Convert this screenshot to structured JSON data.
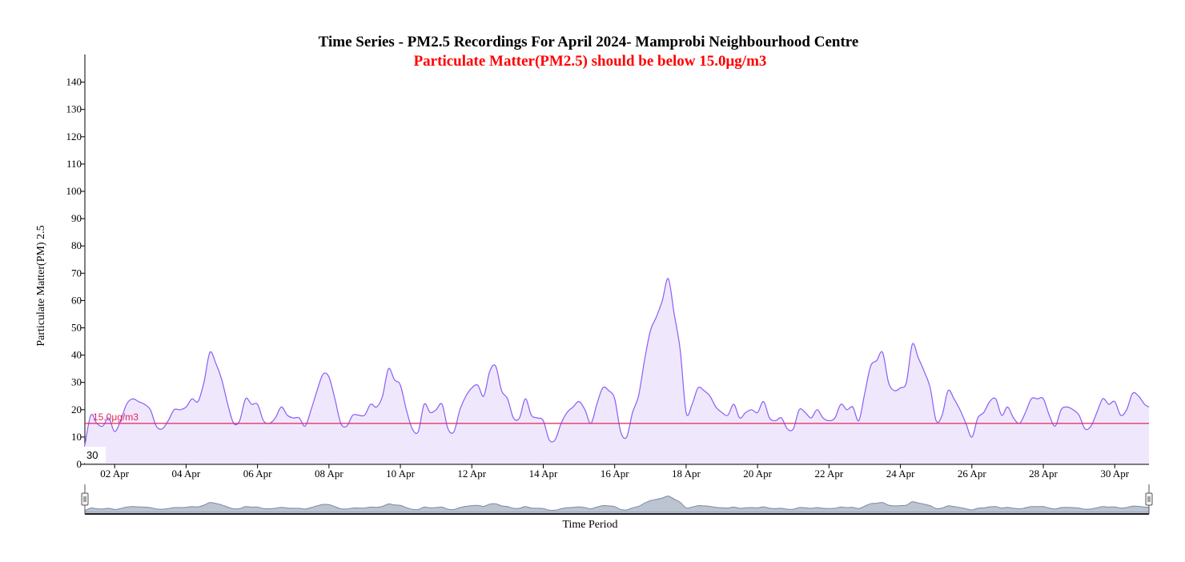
{
  "chart_data": {
    "type": "area",
    "title": "Time Series - PM2.5 Recordings For April 2024- Mamprobi Neighbourhood Centre",
    "subtitle": "Particulate Matter(PM2.5) should be below 15.0μg/m3",
    "xlabel": "Time Period",
    "ylabel": "Particulate Matter(PM) 2.5",
    "xlim": [
      "2024-04-01T04:00",
      "2024-04-30T23:00"
    ],
    "ylim": [
      0,
      145
    ],
    "y_ticks": [
      0,
      10,
      20,
      30,
      40,
      50,
      60,
      70,
      80,
      90,
      100,
      110,
      120,
      130,
      140
    ],
    "x_tick_labels": [
      "02 Apr",
      "04 Apr",
      "06 Apr",
      "08 Apr",
      "10 Apr",
      "12 Apr",
      "14 Apr",
      "16 Apr",
      "18 Apr",
      "20 Apr",
      "22 Apr",
      "24 Apr",
      "26 Apr",
      "28 Apr",
      "30 Apr"
    ],
    "grid": false,
    "threshold": {
      "value": 15.0,
      "label": "15.0μg/m3",
      "color": "#e0245e"
    },
    "hover_value": "30",
    "series": [
      {
        "color": "#8b5cf6",
        "fill": "#efe8fd",
        "points": [
          [
            "2024-04-01T04:00",
            7
          ],
          [
            "2024-04-01T08:00",
            18
          ],
          [
            "2024-04-01T12:00",
            15
          ],
          [
            "2024-04-01T16:00",
            14
          ],
          [
            "2024-04-01T20:00",
            17
          ],
          [
            "2024-04-02T00:00",
            12
          ],
          [
            "2024-04-02T04:00",
            16
          ],
          [
            "2024-04-02T08:00",
            22
          ],
          [
            "2024-04-02T12:00",
            24
          ],
          [
            "2024-04-02T16:00",
            23
          ],
          [
            "2024-04-02T20:00",
            22
          ],
          [
            "2024-04-03T00:00",
            20
          ],
          [
            "2024-04-03T04:00",
            14
          ],
          [
            "2024-04-03T08:00",
            13
          ],
          [
            "2024-04-03T12:00",
            16
          ],
          [
            "2024-04-03T16:00",
            20
          ],
          [
            "2024-04-03T20:00",
            20
          ],
          [
            "2024-04-04T00:00",
            21
          ],
          [
            "2024-04-04T04:00",
            24
          ],
          [
            "2024-04-04T08:00",
            23
          ],
          [
            "2024-04-04T12:00",
            30
          ],
          [
            "2024-04-04T16:00",
            41
          ],
          [
            "2024-04-04T20:00",
            37
          ],
          [
            "2024-04-05T00:00",
            31
          ],
          [
            "2024-04-05T04:00",
            22
          ],
          [
            "2024-04-05T08:00",
            15
          ],
          [
            "2024-04-05T12:00",
            16
          ],
          [
            "2024-04-05T16:00",
            24
          ],
          [
            "2024-04-05T20:00",
            22
          ],
          [
            "2024-04-06T00:00",
            22
          ],
          [
            "2024-04-06T04:00",
            16
          ],
          [
            "2024-04-06T08:00",
            15
          ],
          [
            "2024-04-06T12:00",
            17
          ],
          [
            "2024-04-06T16:00",
            21
          ],
          [
            "2024-04-06T20:00",
            18
          ],
          [
            "2024-04-07T00:00",
            17
          ],
          [
            "2024-04-07T04:00",
            17
          ],
          [
            "2024-04-07T08:00",
            14
          ],
          [
            "2024-04-07T12:00",
            20
          ],
          [
            "2024-04-07T16:00",
            27
          ],
          [
            "2024-04-07T20:00",
            33
          ],
          [
            "2024-04-08T00:00",
            32
          ],
          [
            "2024-04-08T04:00",
            24
          ],
          [
            "2024-04-08T08:00",
            15
          ],
          [
            "2024-04-08T12:00",
            14
          ],
          [
            "2024-04-08T16:00",
            18
          ],
          [
            "2024-04-08T20:00",
            18
          ],
          [
            "2024-04-09T00:00",
            18
          ],
          [
            "2024-04-09T04:00",
            22
          ],
          [
            "2024-04-09T08:00",
            21
          ],
          [
            "2024-04-09T12:00",
            25
          ],
          [
            "2024-04-09T16:00",
            35
          ],
          [
            "2024-04-09T20:00",
            31
          ],
          [
            "2024-04-10T00:00",
            29
          ],
          [
            "2024-04-10T04:00",
            20
          ],
          [
            "2024-04-10T08:00",
            13
          ],
          [
            "2024-04-10T12:00",
            12
          ],
          [
            "2024-04-10T16:00",
            22
          ],
          [
            "2024-04-10T20:00",
            19
          ],
          [
            "2024-04-11T00:00",
            20
          ],
          [
            "2024-04-11T04:00",
            22
          ],
          [
            "2024-04-11T08:00",
            13
          ],
          [
            "2024-04-11T12:00",
            12
          ],
          [
            "2024-04-11T16:00",
            20
          ],
          [
            "2024-04-11T20:00",
            25
          ],
          [
            "2024-04-12T00:00",
            28
          ],
          [
            "2024-04-12T04:00",
            29
          ],
          [
            "2024-04-12T08:00",
            25
          ],
          [
            "2024-04-12T12:00",
            34
          ],
          [
            "2024-04-12T16:00",
            36
          ],
          [
            "2024-04-12T20:00",
            27
          ],
          [
            "2024-04-13T00:00",
            24
          ],
          [
            "2024-04-13T04:00",
            17
          ],
          [
            "2024-04-13T08:00",
            17
          ],
          [
            "2024-04-13T12:00",
            24
          ],
          [
            "2024-04-13T16:00",
            18
          ],
          [
            "2024-04-13T20:00",
            17
          ],
          [
            "2024-04-14T00:00",
            16
          ],
          [
            "2024-04-14T04:00",
            9
          ],
          [
            "2024-04-14T08:00",
            9
          ],
          [
            "2024-04-14T12:00",
            15
          ],
          [
            "2024-04-14T16:00",
            19
          ],
          [
            "2024-04-14T20:00",
            21
          ],
          [
            "2024-04-15T00:00",
            23
          ],
          [
            "2024-04-15T04:00",
            20
          ],
          [
            "2024-04-15T08:00",
            15
          ],
          [
            "2024-04-15T12:00",
            22
          ],
          [
            "2024-04-15T16:00",
            28
          ],
          [
            "2024-04-15T20:00",
            27
          ],
          [
            "2024-04-16T00:00",
            24
          ],
          [
            "2024-04-16T04:00",
            12
          ],
          [
            "2024-04-16T08:00",
            10
          ],
          [
            "2024-04-16T12:00",
            19
          ],
          [
            "2024-04-16T16:00",
            25
          ],
          [
            "2024-04-16T20:00",
            38
          ],
          [
            "2024-04-17T00:00",
            49
          ],
          [
            "2024-04-17T04:00",
            54
          ],
          [
            "2024-04-17T08:00",
            60
          ],
          [
            "2024-04-17T12:00",
            68
          ],
          [
            "2024-04-17T16:00",
            55
          ],
          [
            "2024-04-17T20:00",
            42
          ],
          [
            "2024-04-18T00:00",
            19
          ],
          [
            "2024-04-18T04:00",
            22
          ],
          [
            "2024-04-18T08:00",
            28
          ],
          [
            "2024-04-18T12:00",
            27
          ],
          [
            "2024-04-18T16:00",
            25
          ],
          [
            "2024-04-18T20:00",
            21
          ],
          [
            "2024-04-19T00:00",
            19
          ],
          [
            "2024-04-19T04:00",
            18
          ],
          [
            "2024-04-19T08:00",
            22
          ],
          [
            "2024-04-19T12:00",
            17
          ],
          [
            "2024-04-19T16:00",
            19
          ],
          [
            "2024-04-19T20:00",
            20
          ],
          [
            "2024-04-20T00:00",
            19
          ],
          [
            "2024-04-20T04:00",
            23
          ],
          [
            "2024-04-20T08:00",
            17
          ],
          [
            "2024-04-20T12:00",
            16
          ],
          [
            "2024-04-20T16:00",
            17
          ],
          [
            "2024-04-20T20:00",
            13
          ],
          [
            "2024-04-21T00:00",
            13
          ],
          [
            "2024-04-21T04:00",
            20
          ],
          [
            "2024-04-21T08:00",
            19
          ],
          [
            "2024-04-21T12:00",
            17
          ],
          [
            "2024-04-21T16:00",
            20
          ],
          [
            "2024-04-21T20:00",
            17
          ],
          [
            "2024-04-22T00:00",
            16
          ],
          [
            "2024-04-22T04:00",
            17
          ],
          [
            "2024-04-22T08:00",
            22
          ],
          [
            "2024-04-22T12:00",
            20
          ],
          [
            "2024-04-22T16:00",
            21
          ],
          [
            "2024-04-22T20:00",
            16
          ],
          [
            "2024-04-23T00:00",
            26
          ],
          [
            "2024-04-23T04:00",
            36
          ],
          [
            "2024-04-23T08:00",
            38
          ],
          [
            "2024-04-23T12:00",
            41
          ],
          [
            "2024-04-23T16:00",
            30
          ],
          [
            "2024-04-23T20:00",
            27
          ],
          [
            "2024-04-24T00:00",
            28
          ],
          [
            "2024-04-24T04:00",
            30
          ],
          [
            "2024-04-24T08:00",
            44
          ],
          [
            "2024-04-24T12:00",
            39
          ],
          [
            "2024-04-24T16:00",
            34
          ],
          [
            "2024-04-24T20:00",
            28
          ],
          [
            "2024-04-25T00:00",
            16
          ],
          [
            "2024-04-25T04:00",
            18
          ],
          [
            "2024-04-25T08:00",
            27
          ],
          [
            "2024-04-25T12:00",
            24
          ],
          [
            "2024-04-25T16:00",
            20
          ],
          [
            "2024-04-25T20:00",
            15
          ],
          [
            "2024-04-26T00:00",
            10
          ],
          [
            "2024-04-26T04:00",
            17
          ],
          [
            "2024-04-26T08:00",
            19
          ],
          [
            "2024-04-26T12:00",
            23
          ],
          [
            "2024-04-26T16:00",
            24
          ],
          [
            "2024-04-26T20:00",
            18
          ],
          [
            "2024-04-27T00:00",
            21
          ],
          [
            "2024-04-27T04:00",
            17
          ],
          [
            "2024-04-27T08:00",
            15
          ],
          [
            "2024-04-27T12:00",
            19
          ],
          [
            "2024-04-27T16:00",
            24
          ],
          [
            "2024-04-27T20:00",
            24
          ],
          [
            "2024-04-28T00:00",
            24
          ],
          [
            "2024-04-28T04:00",
            18
          ],
          [
            "2024-04-28T08:00",
            14
          ],
          [
            "2024-04-28T12:00",
            20
          ],
          [
            "2024-04-28T16:00",
            21
          ],
          [
            "2024-04-28T20:00",
            20
          ],
          [
            "2024-04-29T00:00",
            18
          ],
          [
            "2024-04-29T04:00",
            13
          ],
          [
            "2024-04-29T08:00",
            14
          ],
          [
            "2024-04-29T12:00",
            19
          ],
          [
            "2024-04-29T16:00",
            24
          ],
          [
            "2024-04-29T20:00",
            22
          ],
          [
            "2024-04-30T00:00",
            23
          ],
          [
            "2024-04-30T04:00",
            18
          ],
          [
            "2024-04-30T08:00",
            20
          ],
          [
            "2024-04-30T12:00",
            26
          ],
          [
            "2024-04-30T16:00",
            25
          ],
          [
            "2024-04-30T20:00",
            22
          ],
          [
            "2024-04-30T23:00",
            21
          ]
        ]
      }
    ]
  }
}
